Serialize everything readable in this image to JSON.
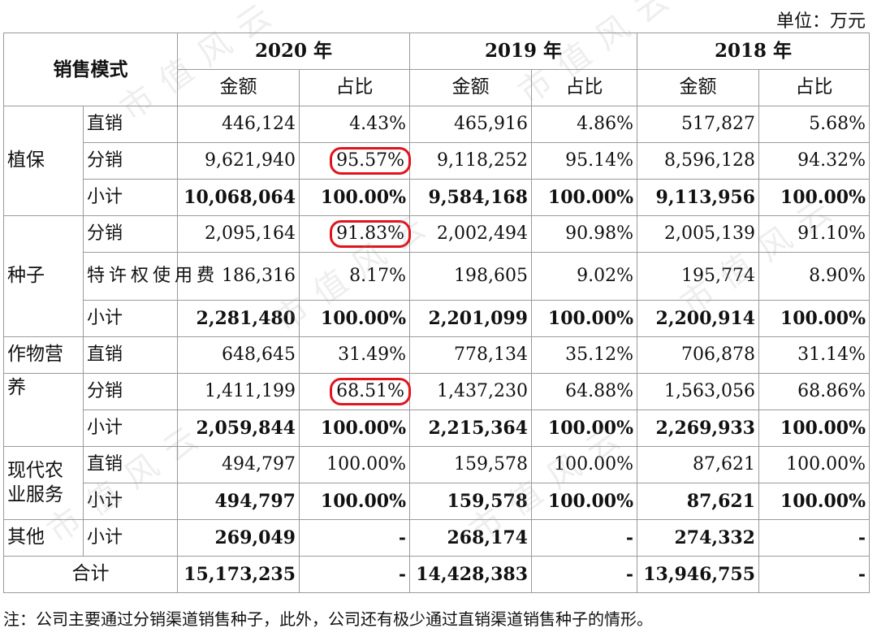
{
  "unit_label": "单位：万元",
  "watermark": "市值风云",
  "header": {
    "mode_label": "销售模式",
    "years": [
      "2020 年",
      "2019 年",
      "2018 年"
    ],
    "amount_label": "金额",
    "ratio_label": "占比"
  },
  "rows": [
    {
      "cat": "植保",
      "sub": "直销",
      "v": [
        "446,124",
        "4.43%",
        "465,916",
        "4.86%",
        "517,827",
        "5.68%"
      ]
    },
    {
      "sub": "分销",
      "v": [
        "9,621,940",
        "95.57%",
        "9,118,252",
        "95.14%",
        "8,596,128",
        "94.32%"
      ]
    },
    {
      "sub": "小计",
      "v": [
        "10,068,064",
        "100.00%",
        "9,584,168",
        "100.00%",
        "9,113,956",
        "100.00%"
      ]
    },
    {
      "cat": "种子",
      "sub": "分销",
      "v": [
        "2,095,164",
        "91.83%",
        "2,002,494",
        "90.98%",
        "2,005,139",
        "91.10%"
      ]
    },
    {
      "sub": "特许权使用费",
      "v": [
        "186,316",
        "8.17%",
        "198,605",
        "9.02%",
        "195,774",
        "8.90%"
      ]
    },
    {
      "sub": "小计",
      "v": [
        "2,281,480",
        "100.00%",
        "2,201,099",
        "100.00%",
        "2,200,914",
        "100.00%"
      ]
    },
    {
      "cat_a": "作物营",
      "cat_b": "养",
      "sub": "直销",
      "v": [
        "648,645",
        "31.49%",
        "778,134",
        "35.12%",
        "706,878",
        "31.14%"
      ]
    },
    {
      "sub": "分销",
      "v": [
        "1,411,199",
        "68.51%",
        "1,437,230",
        "64.88%",
        "1,563,056",
        "68.86%"
      ]
    },
    {
      "sub": "小计",
      "v": [
        "2,059,844",
        "100.00%",
        "2,215,364",
        "100.00%",
        "2,269,933",
        "100.00%"
      ]
    },
    {
      "cat": "现代农业服务",
      "sub": "直销",
      "v": [
        "494,797",
        "100.00%",
        "159,578",
        "100.00%",
        "87,621",
        "100.00%"
      ]
    },
    {
      "sub": "小计",
      "v": [
        "494,797",
        "100.00%",
        "159,578",
        "100.00%",
        "87,621",
        "100.00%"
      ]
    },
    {
      "cat": "其他",
      "sub": "小计",
      "v": [
        "269,049",
        "-",
        "268,174",
        "-",
        "274,332",
        "-"
      ]
    }
  ],
  "total": {
    "label": "合计",
    "v": [
      "15,173,235",
      "-",
      "14,428,383",
      "-",
      "13,946,755",
      "-"
    ]
  },
  "note": "注：公司主要通过分销渠道销售种子，此外，公司还有极少通过直销渠道销售种子的情形。"
}
